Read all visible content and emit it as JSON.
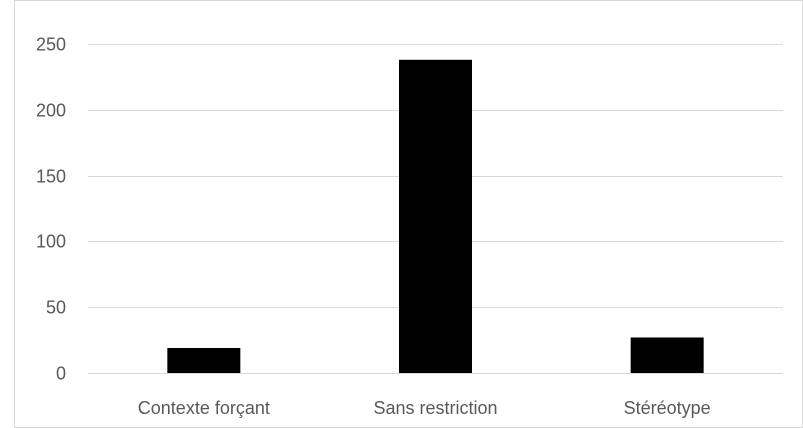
{
  "chart_data": {
    "type": "bar",
    "categories": [
      "Contexte forçant",
      "Sans restriction",
      "Stéréotype"
    ],
    "values": [
      19,
      238,
      27
    ],
    "ylim": [
      0,
      250
    ],
    "yticks": [
      0,
      50,
      100,
      150,
      200,
      250
    ],
    "grid": true,
    "legend": "none",
    "colors": {
      "bar": "#000000",
      "grid": "#d9d9d9",
      "frame": "#d9d9d9",
      "text": "#595959"
    }
  }
}
